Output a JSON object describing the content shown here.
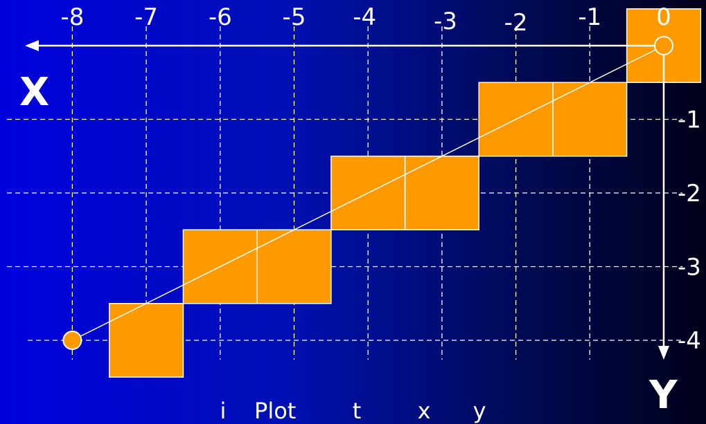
{
  "x_axis_label": "X",
  "y_axis_label": "Y",
  "x_tick_labels": [
    "-8",
    "-7",
    "-6",
    "-5",
    "-4",
    "-3",
    "-2",
    "-1",
    "0"
  ],
  "y_tick_labels": [
    "-1",
    "-2",
    "-3",
    "-4"
  ],
  "caption": "i    Plot        t        x      y",
  "colors": {
    "background_left": "#0000dd",
    "background_right": "#00001a",
    "pixel_fill": "#ff9900",
    "grid_line": "#ffffff",
    "axis_line": "#ffffff"
  },
  "line_endpoints": [
    [
      0,
      0
    ],
    [
      -8,
      -4
    ]
  ],
  "plotted_pixels": [
    {
      "x": 0,
      "y": 0
    },
    {
      "x": -1,
      "y": -1
    },
    {
      "x": -2,
      "y": -1
    },
    {
      "x": -3,
      "y": -2
    },
    {
      "x": -4,
      "y": -2
    },
    {
      "x": -5,
      "y": -3
    },
    {
      "x": -6,
      "y": -3
    },
    {
      "x": -7,
      "y": -4
    }
  ]
}
